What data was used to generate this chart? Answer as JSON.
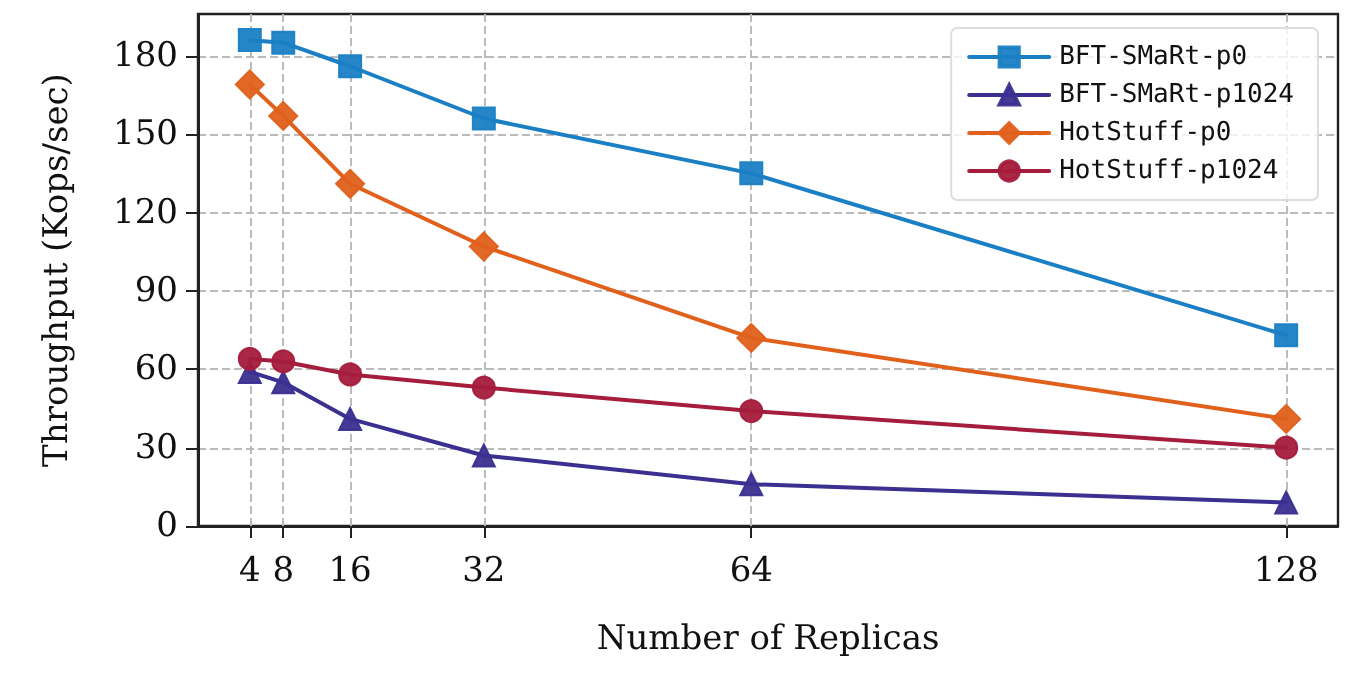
{
  "chart_data": {
    "type": "line",
    "xlabel": "Number of Replicas",
    "ylabel": "Throughput (Kops/sec)",
    "x": [
      4,
      8,
      16,
      32,
      64,
      128
    ],
    "series": [
      {
        "name": "BFT-SMaRt-p0",
        "color": "#1a7fc4",
        "marker": "square",
        "values": [
          186,
          185,
          176,
          156,
          135,
          73
        ]
      },
      {
        "name": "BFT-SMaRt-p1024",
        "color": "#3b2f90",
        "marker": "triangle",
        "values": [
          59,
          55,
          41,
          27,
          16,
          9
        ]
      },
      {
        "name": "HotStuff-p0",
        "color": "#e0601c",
        "marker": "diamond",
        "values": [
          169,
          157,
          131,
          107,
          72,
          41
        ]
      },
      {
        "name": "HotStuff-p1024",
        "color": "#a51c3c",
        "marker": "circle",
        "values": [
          64,
          63,
          58,
          53,
          44,
          30
        ]
      }
    ],
    "xlim": [
      -2.2,
      134.2
    ],
    "xticks": [
      4,
      8,
      16,
      32,
      64,
      128
    ],
    "ylim": [
      0,
      196
    ],
    "yticks": [
      0,
      30,
      60,
      90,
      120,
      150,
      180
    ],
    "grid": true,
    "legend": "top right",
    "line_style": "solid"
  }
}
